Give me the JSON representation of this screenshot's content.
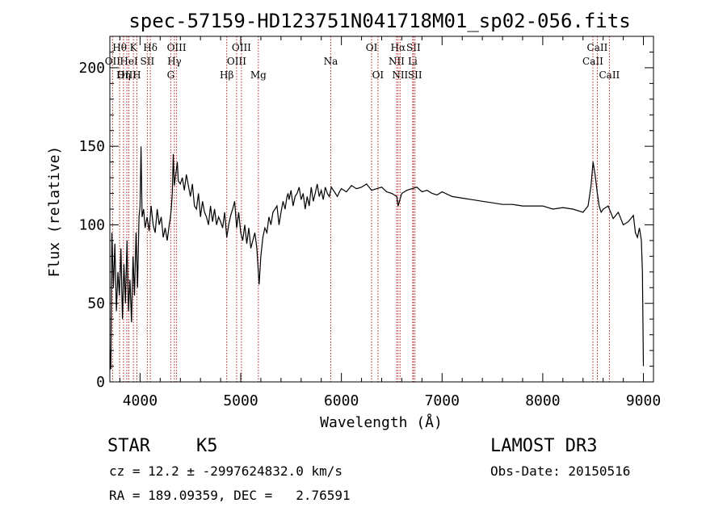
{
  "chart_data": {
    "type": "line",
    "title": "spec-57159-HD123751N041718M01_sp02-056.fits",
    "xlabel": "Wavelength (Å)",
    "ylabel": "Flux (relative)",
    "xlim": [
      3700,
      9100
    ],
    "ylim": [
      0,
      220
    ],
    "x_ticks": [
      4000,
      5000,
      6000,
      7000,
      8000,
      9000
    ],
    "y_ticks": [
      0,
      50,
      100,
      150,
      200
    ],
    "grid": false,
    "line_color": "#000000",
    "marker_color": "#b22222",
    "series": [
      {
        "x": [
          3700,
          3710,
          3720,
          3735,
          3750,
          3765,
          3780,
          3795,
          3810,
          3825,
          3840,
          3855,
          3870,
          3885,
          3900,
          3915,
          3930,
          3945,
          3960,
          3975,
          3990,
          4000,
          4010,
          4020,
          4035,
          4050,
          4070,
          4090,
          4110,
          4130,
          4150,
          4170,
          4190,
          4210,
          4230,
          4250,
          4270,
          4290,
          4300,
          4310,
          4320,
          4330,
          4340,
          4350,
          4360,
          4370,
          4380,
          4400,
          4420,
          4440,
          4460,
          4480,
          4500,
          4520,
          4540,
          4560,
          4580,
          4600,
          4620,
          4640,
          4660,
          4680,
          4700,
          4720,
          4740,
          4760,
          4780,
          4800,
          4820,
          4840,
          4861,
          4880,
          4900,
          4920,
          4940,
          4960,
          4980,
          5000,
          5020,
          5040,
          5060,
          5080,
          5100,
          5120,
          5140,
          5160,
          5175,
          5183,
          5200,
          5220,
          5240,
          5260,
          5280,
          5300,
          5320,
          5340,
          5360,
          5380,
          5400,
          5420,
          5440,
          5460,
          5470,
          5480,
          5500,
          5520,
          5540,
          5560,
          5580,
          5600,
          5620,
          5640,
          5660,
          5680,
          5700,
          5720,
          5740,
          5760,
          5780,
          5800,
          5820,
          5840,
          5860,
          5880,
          5900,
          5920,
          5940,
          5960,
          5980,
          6000,
          6050,
          6100,
          6150,
          6200,
          6250,
          6300,
          6350,
          6400,
          6450,
          6500,
          6550,
          6563,
          6600,
          6650,
          6700,
          6750,
          6800,
          6850,
          6900,
          6950,
          7000,
          7100,
          7200,
          7300,
          7400,
          7500,
          7600,
          7700,
          7800,
          7900,
          8000,
          8100,
          8200,
          8300,
          8400,
          8450,
          8480,
          8500,
          8520,
          8542,
          8560,
          8580,
          8600,
          8650,
          8700,
          8750,
          8800,
          8850,
          8900,
          8920,
          8940,
          8960,
          8980,
          8990,
          9000
        ],
        "y": [
          20,
          8,
          95,
          60,
          88,
          45,
          70,
          55,
          85,
          40,
          75,
          50,
          90,
          45,
          65,
          38,
          80,
          55,
          95,
          60,
          105,
          112,
          150,
          105,
          110,
          98,
          105,
          96,
          112,
          100,
          95,
          110,
          100,
          105,
          92,
          98,
          90,
          100,
          104,
          110,
          120,
          145,
          125,
          130,
          135,
          140,
          128,
          126,
          130,
          122,
          132,
          125,
          118,
          126,
          112,
          110,
          120,
          105,
          115,
          108,
          105,
          100,
          112,
          102,
          110,
          100,
          105,
          102,
          98,
          108,
          92,
          100,
          106,
          110,
          115,
          98,
          108,
          95,
          90,
          100,
          88,
          98,
          85,
          90,
          95,
          85,
          70,
          62,
          80,
          92,
          98,
          95,
          105,
          100,
          108,
          110,
          112,
          100,
          108,
          115,
          110,
          118,
          120,
          116,
          122,
          112,
          118,
          120,
          124,
          116,
          120,
          110,
          118,
          112,
          124,
          115,
          120,
          126,
          118,
          122,
          116,
          124,
          120,
          118,
          124,
          122,
          120,
          118,
          121,
          123,
          121,
          125,
          123,
          124,
          126,
          122,
          123,
          124,
          121,
          120,
          118,
          112,
          120,
          122,
          123,
          124,
          121,
          122,
          120,
          119,
          121,
          118,
          117,
          116,
          115,
          114,
          113,
          113,
          112,
          112,
          112,
          110,
          111,
          110,
          108,
          112,
          125,
          140,
          132,
          120,
          112,
          108,
          110,
          112,
          104,
          108,
          100,
          102,
          106,
          95,
          92,
          98,
          90,
          70,
          10
        ]
      }
    ],
    "line_markers": [
      {
        "label": "Hθ",
        "x": 3797,
        "row": 0
      },
      {
        "label": "OII",
        "x": 3727,
        "row": 1
      },
      {
        "label": "OIII",
        "x": 3869,
        "row": 2
      },
      {
        "label": "K",
        "x": 3934,
        "row": 0
      },
      {
        "label": "HeI",
        "x": 3889,
        "row": 1
      },
      {
        "label": "Hη",
        "x": 3835,
        "row": 2
      },
      {
        "label": "H",
        "x": 3968,
        "row": 2
      },
      {
        "label": "SII",
        "x": 4072,
        "row": 1
      },
      {
        "label": "Hδ",
        "x": 4102,
        "row": 0
      },
      {
        "label": "OIII",
        "x": 4363,
        "row": 0
      },
      {
        "label": "Hγ",
        "x": 4341,
        "row": 1
      },
      {
        "label": "G",
        "x": 4305,
        "row": 2
      },
      {
        "label": "OIII",
        "x": 5007,
        "row": 0
      },
      {
        "label": "OIII",
        "x": 4959,
        "row": 1
      },
      {
        "label": "Hβ",
        "x": 4861,
        "row": 2
      },
      {
        "label": "Mg",
        "x": 5175,
        "row": 2
      },
      {
        "label": "Na",
        "x": 5894,
        "row": 1
      },
      {
        "label": "OI",
        "x": 6300,
        "row": 0
      },
      {
        "label": "OI",
        "x": 6363,
        "row": 2
      },
      {
        "label": "Hα",
        "x": 6563,
        "row": 0
      },
      {
        "label": "NII",
        "x": 6548,
        "row": 1
      },
      {
        "label": "NII",
        "x": 6583,
        "row": 2
      },
      {
        "label": "SII",
        "x": 6716,
        "row": 0
      },
      {
        "label": "Li",
        "x": 6708,
        "row": 1
      },
      {
        "label": "SII",
        "x": 6731,
        "row": 2
      },
      {
        "label": "CaII",
        "x": 8498,
        "row": 1
      },
      {
        "label": "CaII",
        "x": 8542,
        "row": 0
      },
      {
        "label": "CaII",
        "x": 8662,
        "row": 2
      }
    ]
  },
  "info": {
    "object_class": "STAR",
    "subclass": "K5",
    "survey": "LAMOST DR3",
    "redshift_line": "cz = 12.2 ± -2997624832.0 km/s",
    "obs_date": "Obs-Date: 20150516",
    "coords": "RA = 189.09359, DEC =   2.76591"
  }
}
